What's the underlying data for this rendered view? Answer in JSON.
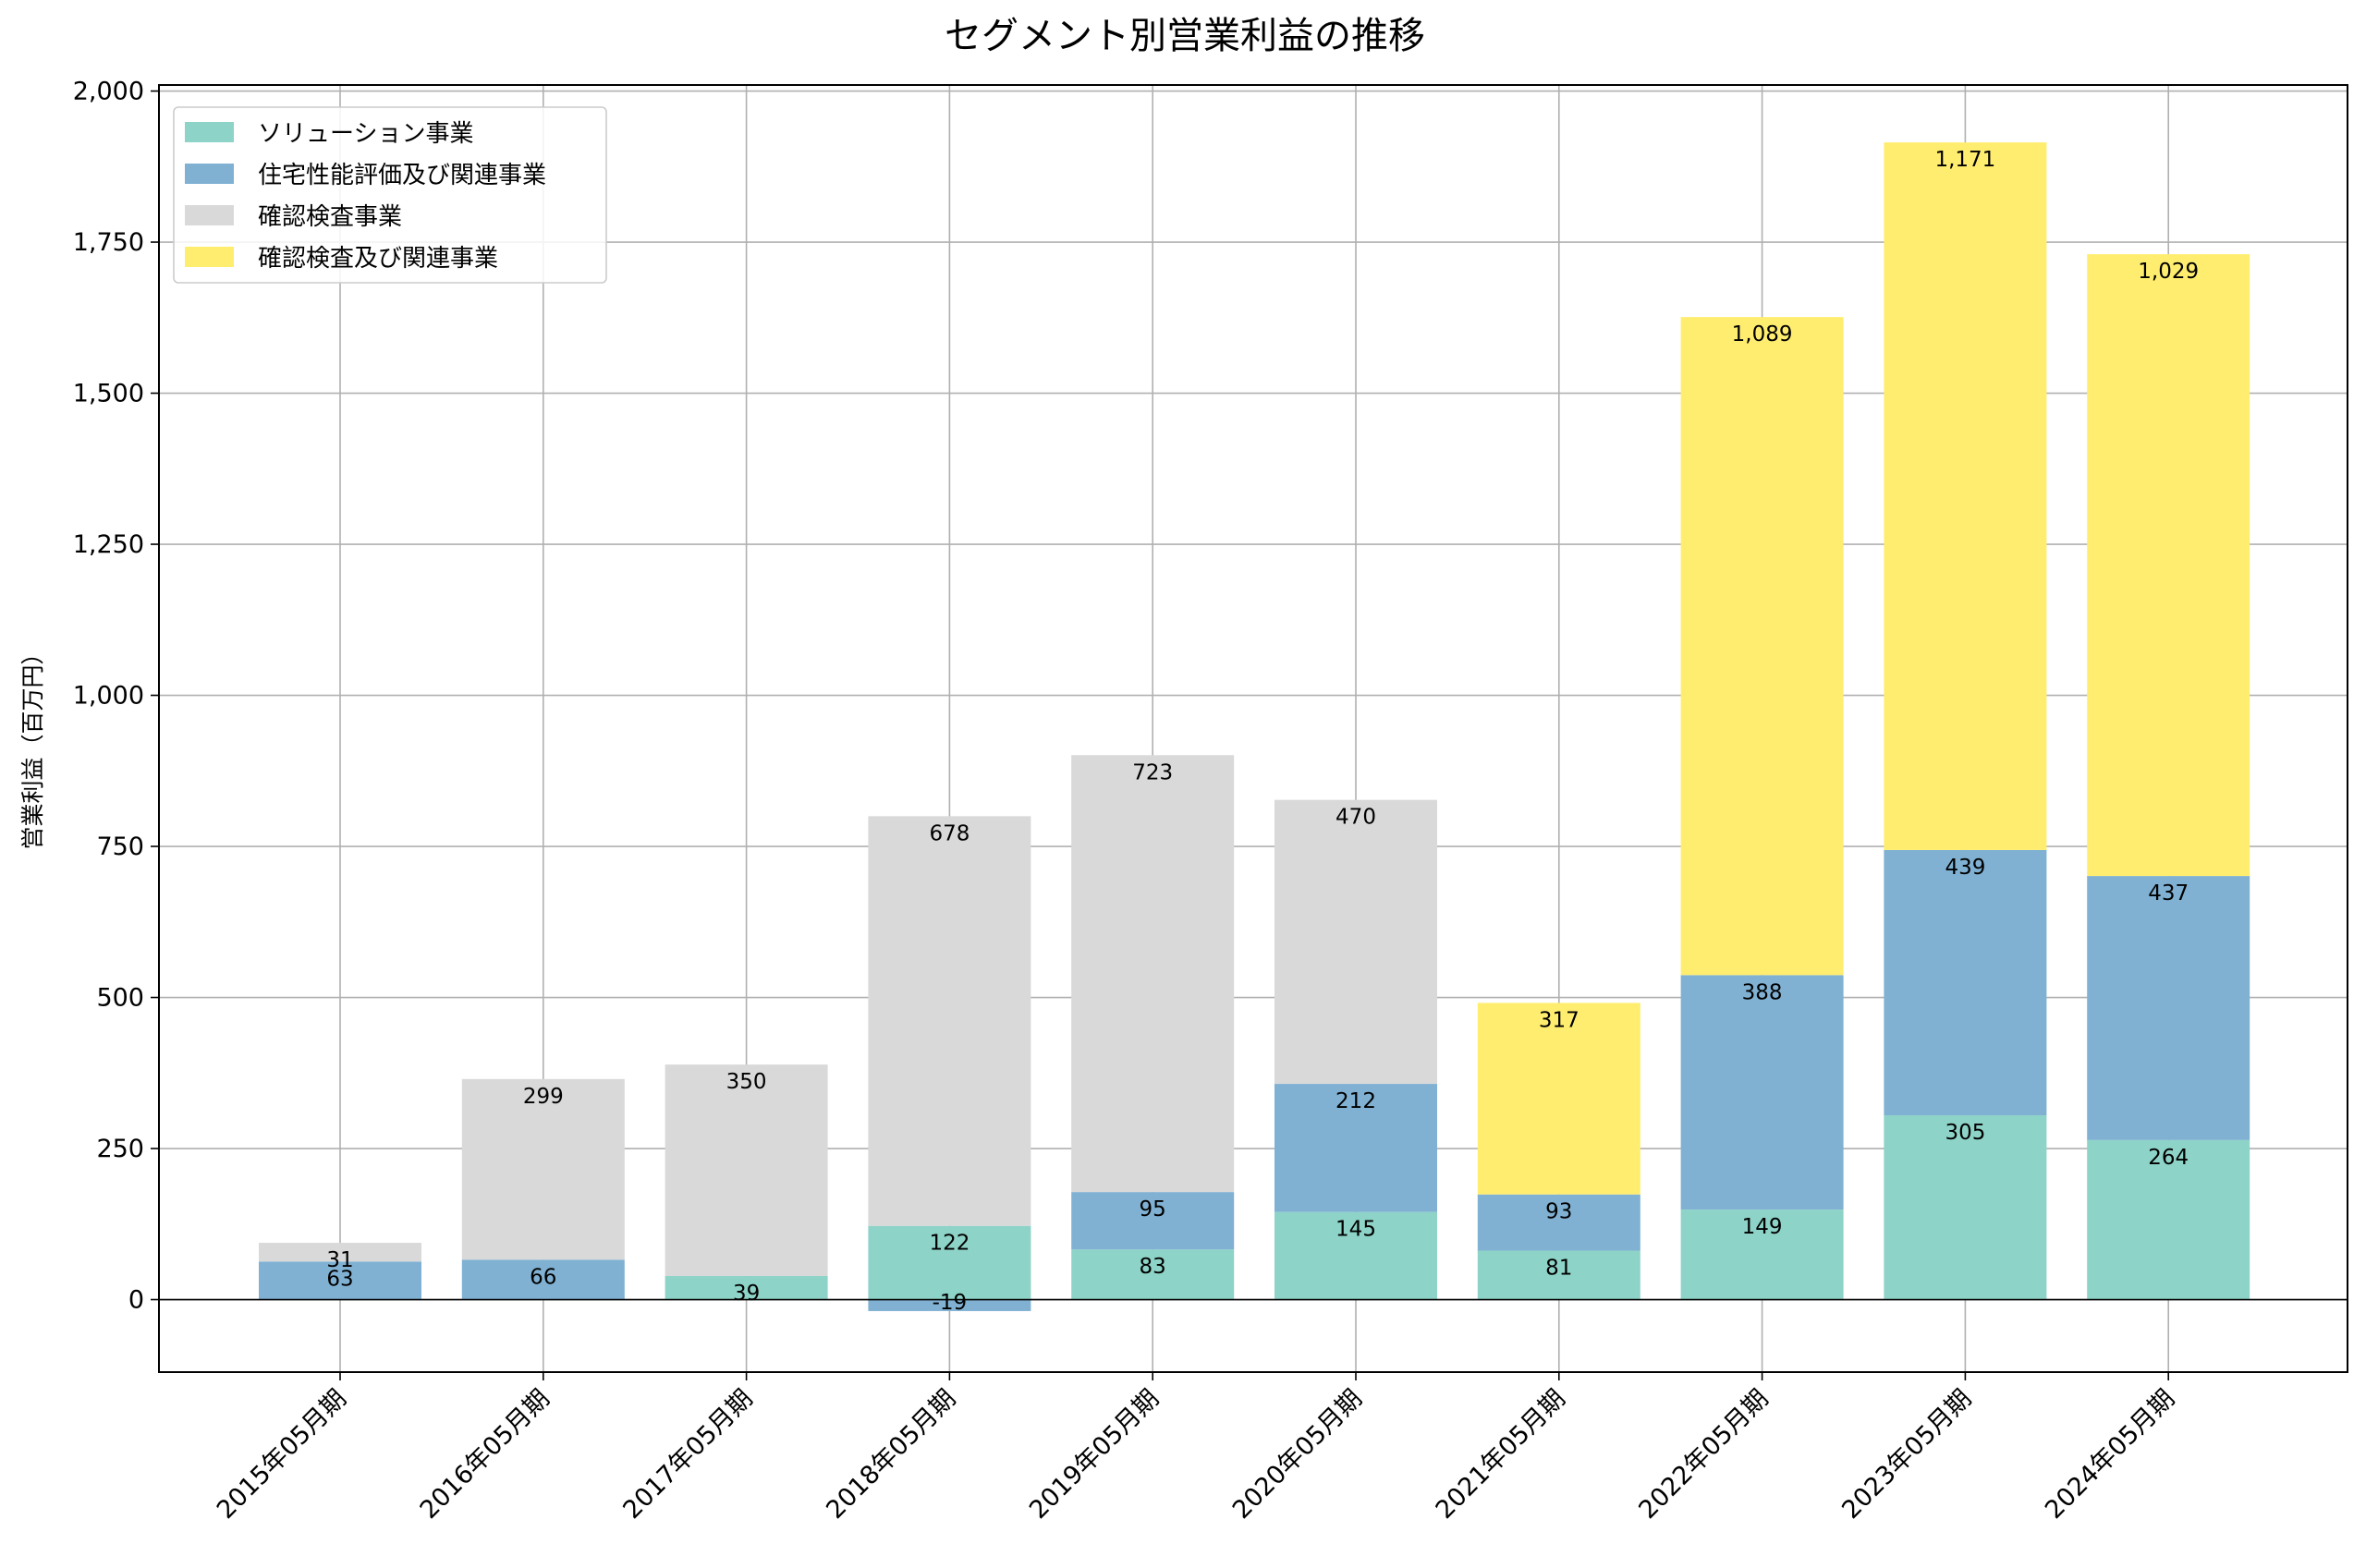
{
  "chart_data": {
    "type": "bar",
    "stacked": true,
    "title": "セグメント別営業利益の推移",
    "xlabel": "",
    "ylabel": "営業利益（百万円）",
    "ylim": [
      -120,
      2010
    ],
    "yticks": [
      0,
      250,
      500,
      750,
      1000,
      1250,
      1500,
      1750,
      2000
    ],
    "ytick_labels": [
      "0",
      "250",
      "500",
      "750",
      "1,000",
      "1,250",
      "1,500",
      "1,750",
      "2,000"
    ],
    "grid": true,
    "legend_position": "top-left",
    "categories": [
      "2015年05月期",
      "2016年05月期",
      "2017年05月期",
      "2018年05月期",
      "2019年05月期",
      "2020年05月期",
      "2021年05月期",
      "2022年05月期",
      "2023年05月期",
      "2024年05月期"
    ],
    "series": [
      {
        "name": "ソリューション事業",
        "color": "#8dd3c7",
        "values": [
          null,
          null,
          39,
          122,
          83,
          145,
          81,
          149,
          305,
          264
        ]
      },
      {
        "name": "住宅性能評価及び関連事業",
        "color": "#80b1d3",
        "values": [
          63,
          66,
          null,
          -19,
          95,
          212,
          93,
          388,
          439,
          437
        ]
      },
      {
        "name": "確認検査事業",
        "color": "#d9d9d9",
        "values": [
          31,
          299,
          350,
          678,
          723,
          470,
          null,
          null,
          null,
          null
        ]
      },
      {
        "name": "確認検査及び関連事業",
        "color": "#ffed6f",
        "values": [
          null,
          null,
          null,
          null,
          null,
          null,
          317,
          1089,
          1171,
          1029
        ]
      }
    ],
    "data_labels": [
      [
        "",
        "",
        "39",
        "122",
        "83",
        "145",
        "81",
        "149",
        "305",
        "264"
      ],
      [
        "63",
        "66",
        "",
        "-19",
        "95",
        "212",
        "93",
        "388",
        "439",
        "437"
      ],
      [
        "31",
        "299",
        "350",
        "678",
        "723",
        "470",
        "",
        "",
        "",
        ""
      ],
      [
        "",
        "",
        "",
        "",
        "",
        "",
        "317",
        "1,089",
        "1,171",
        "1,029"
      ]
    ]
  }
}
